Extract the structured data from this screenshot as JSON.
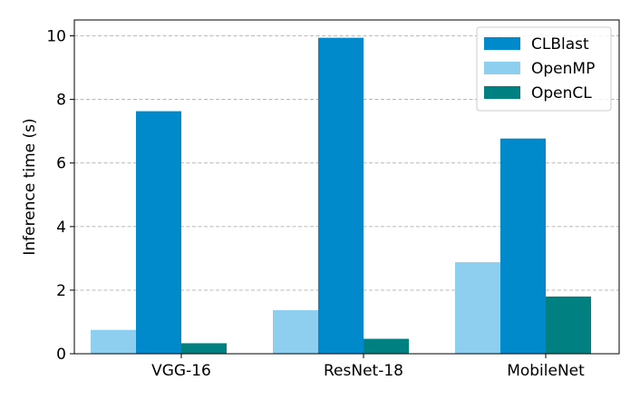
{
  "chart_data": {
    "type": "bar",
    "title": "",
    "xlabel": "",
    "ylabel": "Inference time (s)",
    "categories": [
      "VGG-16",
      "ResNet-18",
      "MobileNet"
    ],
    "ylim": [
      0,
      10.5
    ],
    "yticks": [
      "0",
      "2",
      "4",
      "6",
      "8",
      "10"
    ],
    "grid": true,
    "legend_position": "top-right",
    "series": [
      {
        "name": "OpenMP",
        "color": "#8ecff0",
        "values": [
          0.75,
          1.37,
          2.88
        ]
      },
      {
        "name": "CLBlast",
        "color": "#008acb",
        "values": [
          7.63,
          9.94,
          6.77
        ]
      },
      {
        "name": "OpenCL",
        "color": "#008080",
        "values": [
          0.33,
          0.47,
          1.8
        ]
      }
    ],
    "legend_order": [
      "CLBlast",
      "OpenMP",
      "OpenCL"
    ]
  }
}
